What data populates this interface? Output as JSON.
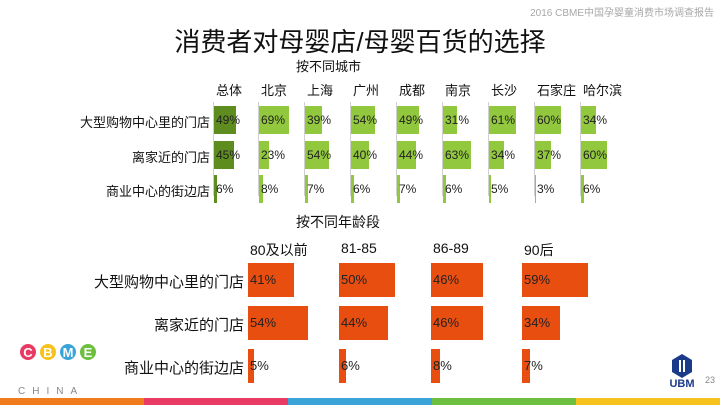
{
  "header": {
    "report_label": "2016 CBME中国孕婴童消费市场调查报告"
  },
  "title": "消费者对母婴店/母婴百货的选择",
  "page_number": "23",
  "logo": {
    "name": "CBME",
    "tagline": "CHINA"
  },
  "ubm_logo": "UBM",
  "chart_data": [
    {
      "type": "bar",
      "title": "按不同城市",
      "categories": [
        "总体",
        "北京",
        "上海",
        "广州",
        "成都",
        "南京",
        "长沙",
        "石家庄",
        "哈尔滨"
      ],
      "series": [
        {
          "name": "大型购物中心里的门店",
          "values": [
            49,
            69,
            39,
            54,
            49,
            31,
            61,
            60,
            34
          ]
        },
        {
          "name": "离家近的门店",
          "values": [
            45,
            23,
            54,
            40,
            44,
            63,
            34,
            37,
            60
          ]
        },
        {
          "name": "商业中心的街边店",
          "values": [
            6,
            8,
            7,
            6,
            7,
            6,
            5,
            3,
            6
          ]
        }
      ],
      "value_suffix": "%",
      "colors": {
        "overall": "#5f8c1e",
        "city": "#92c83e"
      }
    },
    {
      "type": "bar",
      "title": "按不同年龄段",
      "categories": [
        "80及以前",
        "81-85",
        "86-89",
        "90后"
      ],
      "series": [
        {
          "name": "大型购物中心里的门店",
          "values": [
            41,
            50,
            46,
            59
          ]
        },
        {
          "name": "离家近的门店",
          "values": [
            54,
            44,
            46,
            34
          ]
        },
        {
          "name": "商业中心的街边店",
          "values": [
            5,
            6,
            8,
            7
          ]
        }
      ],
      "value_suffix": "%",
      "colors": {
        "bar": "#e84e0f"
      }
    }
  ],
  "footer_colors": [
    "#f07b1d",
    "#e83a62",
    "#3aa4d8",
    "#6cbf3f",
    "#f6c21d"
  ]
}
